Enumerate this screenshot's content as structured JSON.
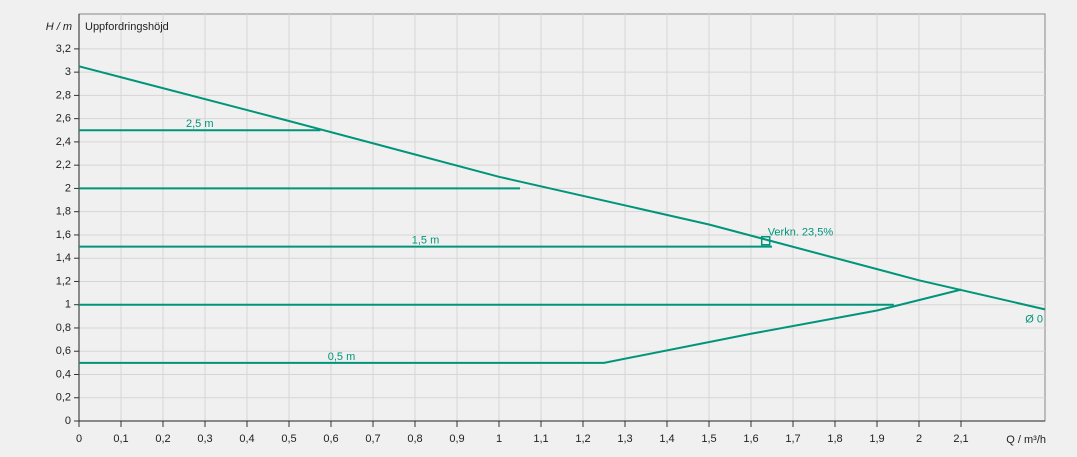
{
  "chart_data": {
    "type": "line",
    "y_label": "H / m",
    "title": "Uppfordringshöjd",
    "x_label": "Q / m³/h",
    "xlim": [
      0,
      2.3
    ],
    "ylim": [
      0,
      3.5
    ],
    "grid": true,
    "xticks": [
      0,
      {
        "value": 0.1,
        "label": "0,1"
      },
      {
        "value": 0.2,
        "label": "0,2"
      },
      {
        "value": 0.3,
        "label": "0,3"
      },
      {
        "value": 0.4,
        "label": "0,4"
      },
      {
        "value": 0.5,
        "label": "0,5"
      },
      {
        "value": 0.6,
        "label": "0,6"
      },
      {
        "value": 0.7,
        "label": "0,7"
      },
      {
        "value": 0.8,
        "label": "0,8"
      },
      {
        "value": 0.9,
        "label": "0,9"
      },
      1,
      {
        "value": 1.1,
        "label": "1,1"
      },
      {
        "value": 1.2,
        "label": "1,2"
      },
      {
        "value": 1.3,
        "label": "1,3"
      },
      {
        "value": 1.4,
        "label": "1,4"
      },
      {
        "value": 1.5,
        "label": "1,5"
      },
      {
        "value": 1.6,
        "label": "1,6"
      },
      {
        "value": 1.7,
        "label": "1,7"
      },
      {
        "value": 1.8,
        "label": "1,8"
      },
      {
        "value": 1.9,
        "label": "1,9"
      },
      2,
      {
        "value": 2.1,
        "label": "2,1"
      }
    ],
    "yticks": [
      0,
      {
        "value": 0.2,
        "label": "0,2"
      },
      {
        "value": 0.4,
        "label": "0,4"
      },
      {
        "value": 0.6,
        "label": "0,6"
      },
      {
        "value": 0.8,
        "label": "0,8"
      },
      1,
      {
        "value": 1.2,
        "label": "1,2"
      },
      {
        "value": 1.4,
        "label": "1,4"
      },
      {
        "value": 1.6,
        "label": "1,6"
      },
      {
        "value": 1.8,
        "label": "1,8"
      },
      2,
      {
        "value": 2.2,
        "label": "2,2"
      },
      {
        "value": 2.4,
        "label": "2,4"
      },
      {
        "value": 2.6,
        "label": "2,6"
      },
      {
        "value": 2.8,
        "label": "2,8"
      },
      3,
      {
        "value": 3.2,
        "label": "3,2"
      }
    ],
    "series": [
      {
        "name": "Ø 0",
        "color": "#00957a",
        "x": [
          0,
          0.5,
          1,
          1.5,
          2,
          2.3
        ],
        "values": [
          3.05,
          2.58,
          2.1,
          1.69,
          1.21,
          0.96
        ]
      },
      {
        "name": "2,5 m",
        "color": "#00957a",
        "x": [
          0,
          0.575
        ],
        "values": [
          2.5,
          2.5
        ]
      },
      {
        "color": "#00957a",
        "x": [
          0,
          1.05
        ],
        "values": [
          2,
          2
        ]
      },
      {
        "name": "1,5 m",
        "color": "#00957a",
        "x": [
          0,
          1.65
        ],
        "values": [
          1.5,
          1.5
        ]
      },
      {
        "color": "#00957a",
        "x": [
          0,
          1.94
        ],
        "values": [
          1,
          1
        ]
      },
      {
        "name": "0,5 m",
        "color": "#00957a",
        "x": [
          0,
          1.25,
          1.6,
          1.9,
          2.1
        ],
        "values": [
          0.5,
          0.5,
          0.75,
          0.95,
          1.13
        ]
      }
    ],
    "operating_point": {
      "label": "Verkn.  23,5%",
      "x": 1.635,
      "y": 1.55,
      "color": "#00957a"
    }
  }
}
